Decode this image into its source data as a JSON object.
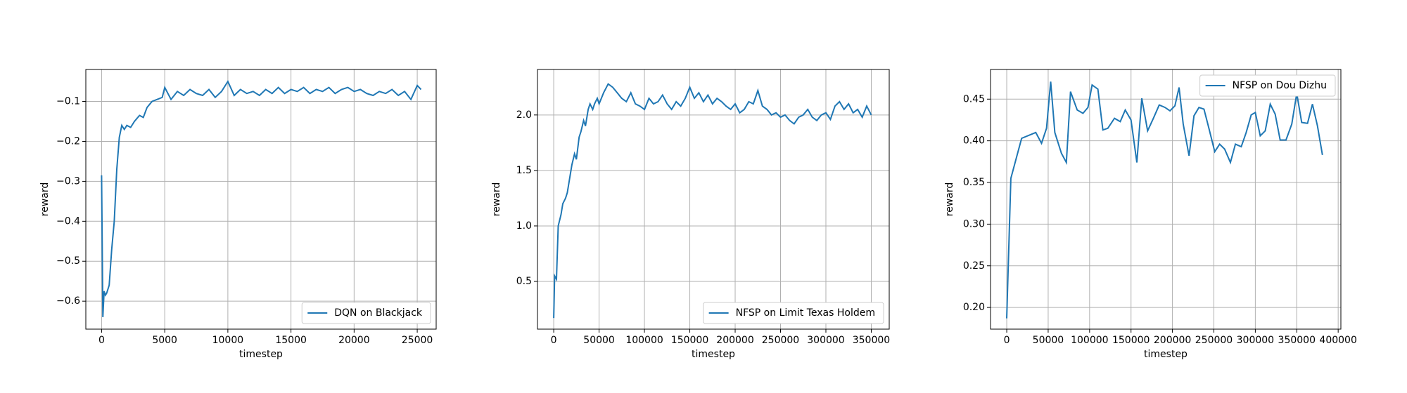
{
  "chart_data": [
    {
      "type": "line",
      "xlabel": "timestep",
      "ylabel": "reward",
      "grid": true,
      "legend": "lower right",
      "xlim": [
        -1250,
        26500
      ],
      "ylim": [
        -0.67,
        -0.02
      ],
      "xticks": [
        0,
        5000,
        10000,
        15000,
        20000,
        25000
      ],
      "yticks": [
        {
          "value": -0.6,
          "label": "−0.6"
        },
        {
          "value": -0.5,
          "label": "−0.5"
        },
        {
          "value": -0.4,
          "label": "−0.4"
        },
        {
          "value": -0.3,
          "label": "−0.3"
        },
        {
          "value": -0.2,
          "label": "−0.2"
        },
        {
          "value": -0.1,
          "label": "−0.1"
        }
      ],
      "x": [
        0,
        100,
        200,
        300,
        400,
        600,
        800,
        1000,
        1200,
        1400,
        1600,
        1800,
        2000,
        2300,
        2600,
        3000,
        3300,
        3600,
        4000,
        4400,
        4800,
        5000,
        5500,
        6000,
        6500,
        7000,
        7500,
        8000,
        8500,
        9000,
        9500,
        10000,
        10500,
        11000,
        11500,
        12000,
        12500,
        13000,
        13500,
        14000,
        14500,
        15000,
        15500,
        16000,
        16500,
        17000,
        17500,
        18000,
        18500,
        19000,
        19500,
        20000,
        20500,
        21000,
        21500,
        22000,
        22500,
        23000,
        23500,
        24000,
        24500,
        25000,
        25300
      ],
      "series": [
        {
          "name": "DQN on Blackjack",
          "color": "#1f77b4",
          "values": [
            -0.285,
            -0.64,
            -0.575,
            -0.585,
            -0.58,
            -0.56,
            -0.47,
            -0.4,
            -0.27,
            -0.19,
            -0.16,
            -0.17,
            -0.16,
            -0.165,
            -0.15,
            -0.135,
            -0.14,
            -0.115,
            -0.1,
            -0.095,
            -0.09,
            -0.065,
            -0.095,
            -0.075,
            -0.085,
            -0.07,
            -0.08,
            -0.085,
            -0.07,
            -0.09,
            -0.075,
            -0.05,
            -0.085,
            -0.07,
            -0.08,
            -0.075,
            -0.085,
            -0.07,
            -0.08,
            -0.065,
            -0.08,
            -0.07,
            -0.075,
            -0.065,
            -0.08,
            -0.07,
            -0.075,
            -0.065,
            -0.08,
            -0.07,
            -0.065,
            -0.075,
            -0.07,
            -0.08,
            -0.085,
            -0.075,
            -0.08,
            -0.07,
            -0.085,
            -0.075,
            -0.095,
            -0.06,
            -0.07
          ]
        }
      ]
    },
    {
      "type": "line",
      "xlabel": "timestep",
      "ylabel": "reward",
      "grid": true,
      "legend": "lower right",
      "xlim": [
        -17900,
        369800
      ],
      "ylim": [
        0.07,
        2.41
      ],
      "xticks": [
        0,
        50000,
        100000,
        150000,
        200000,
        250000,
        300000,
        350000
      ],
      "yticks": [
        0.5,
        {
          "value": 1,
          "label": "1.0"
        },
        1.5,
        {
          "value": 2,
          "label": "2.0"
        }
      ],
      "x": [
        0,
        1000,
        3000,
        5000,
        8000,
        10000,
        13000,
        15000,
        18000,
        20000,
        23000,
        25000,
        28000,
        30000,
        33000,
        35000,
        38000,
        40000,
        43000,
        45000,
        48000,
        50000,
        55000,
        60000,
        65000,
        70000,
        75000,
        80000,
        85000,
        90000,
        95000,
        100000,
        105000,
        110000,
        115000,
        120000,
        125000,
        130000,
        135000,
        140000,
        145000,
        150000,
        155000,
        160000,
        165000,
        170000,
        175000,
        180000,
        185000,
        190000,
        195000,
        200000,
        205000,
        210000,
        215000,
        220000,
        225000,
        230000,
        235000,
        240000,
        245000,
        250000,
        255000,
        260000,
        265000,
        270000,
        275000,
        280000,
        285000,
        290000,
        295000,
        300000,
        305000,
        310000,
        315000,
        320000,
        325000,
        330000,
        335000,
        340000,
        345000,
        350000
      ],
      "series": [
        {
          "name": "NFSP on Limit Texas Holdem",
          "color": "#1f77b4",
          "values": [
            0.17,
            0.55,
            0.52,
            1.0,
            1.1,
            1.2,
            1.25,
            1.3,
            1.45,
            1.55,
            1.65,
            1.6,
            1.8,
            1.85,
            1.95,
            1.9,
            2.05,
            2.1,
            2.05,
            2.1,
            2.15,
            2.1,
            2.2,
            2.28,
            2.25,
            2.2,
            2.15,
            2.12,
            2.2,
            2.1,
            2.08,
            2.05,
            2.15,
            2.1,
            2.12,
            2.18,
            2.1,
            2.05,
            2.12,
            2.08,
            2.15,
            2.25,
            2.15,
            2.2,
            2.12,
            2.18,
            2.1,
            2.15,
            2.12,
            2.08,
            2.05,
            2.1,
            2.02,
            2.05,
            2.12,
            2.1,
            2.22,
            2.08,
            2.05,
            2.0,
            2.02,
            1.98,
            2.0,
            1.95,
            1.92,
            1.98,
            2.0,
            2.05,
            1.98,
            1.95,
            2.0,
            2.02,
            1.96,
            2.08,
            2.12,
            2.05,
            2.1,
            2.02,
            2.05,
            1.98,
            2.08,
            2.0
          ]
        }
      ]
    },
    {
      "type": "line",
      "xlabel": "timestep",
      "ylabel": "reward",
      "grid": true,
      "legend": "upper right",
      "xlim": [
        -19565,
        403260
      ],
      "ylim": [
        0.174,
        0.4856
      ],
      "xticks": [
        0,
        50000,
        100000,
        150000,
        200000,
        250000,
        300000,
        350000,
        400000
      ],
      "yticks": [
        {
          "value": 0.2,
          "label": "0.20"
        },
        0.25,
        {
          "value": 0.3,
          "label": "0.30"
        },
        0.35,
        {
          "value": 0.4,
          "label": "0.40"
        },
        0.45
      ],
      "x": [
        0,
        5000,
        18000,
        35000,
        42000,
        48000,
        53000,
        58000,
        66000,
        72000,
        77000,
        85000,
        92000,
        98000,
        103000,
        110000,
        116000,
        122000,
        130000,
        137000,
        143000,
        150000,
        157000,
        163000,
        170000,
        177000,
        184000,
        191000,
        197000,
        203000,
        208000,
        213000,
        220000,
        226000,
        232000,
        238000,
        244000,
        251000,
        257000,
        263000,
        270000,
        276000,
        283000,
        289000,
        295000,
        300000,
        306000,
        312000,
        318000,
        324000,
        330000,
        337000,
        344000,
        350000,
        356000,
        363000,
        369000,
        375000,
        381000
      ],
      "series": [
        {
          "name": "NFSP on Dou Dizhu",
          "color": "#1f77b4",
          "values": [
            0.187,
            0.355,
            0.403,
            0.41,
            0.397,
            0.415,
            0.471,
            0.41,
            0.385,
            0.374,
            0.459,
            0.437,
            0.433,
            0.44,
            0.467,
            0.462,
            0.413,
            0.415,
            0.427,
            0.423,
            0.437,
            0.425,
            0.374,
            0.451,
            0.412,
            0.427,
            0.443,
            0.44,
            0.436,
            0.442,
            0.464,
            0.42,
            0.382,
            0.43,
            0.44,
            0.438,
            0.415,
            0.387,
            0.396,
            0.39,
            0.374,
            0.396,
            0.393,
            0.41,
            0.431,
            0.434,
            0.406,
            0.412,
            0.444,
            0.432,
            0.401,
            0.401,
            0.42,
            0.457,
            0.422,
            0.421,
            0.444,
            0.418,
            0.383
          ]
        }
      ]
    }
  ]
}
